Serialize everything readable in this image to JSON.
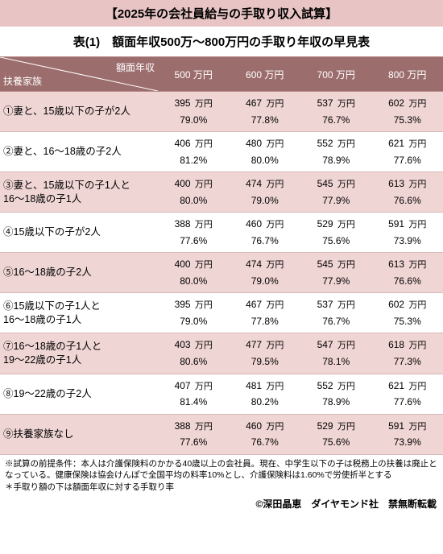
{
  "title": "【2025年の会社員給与の手取り収入試算】",
  "subtitle": "表(1)　額面年収500万～800万円の手取り年収の早見表",
  "header": {
    "diag_left": "扶養家族",
    "diag_right": "額面年収",
    "cols": [
      "500",
      "600",
      "700",
      "800"
    ],
    "col_unit": "万円"
  },
  "unit_man": "万円",
  "rows": [
    {
      "label": "①妻と、15歳以下の子が2人",
      "amounts": [
        "395",
        "467",
        "537",
        "602"
      ],
      "rates": [
        "79.0%",
        "77.8%",
        "76.7%",
        "75.3%"
      ]
    },
    {
      "label": "②妻と、16～18歳の子2人",
      "amounts": [
        "406",
        "480",
        "552",
        "621"
      ],
      "rates": [
        "81.2%",
        "80.0%",
        "78.9%",
        "77.6%"
      ]
    },
    {
      "label": "③妻と、15歳以下の子1人と\n16～18歳の子1人",
      "amounts": [
        "400",
        "474",
        "545",
        "613"
      ],
      "rates": [
        "80.0%",
        "79.0%",
        "77.9%",
        "76.6%"
      ]
    },
    {
      "label": "④15歳以下の子が2人",
      "amounts": [
        "388",
        "460",
        "529",
        "591"
      ],
      "rates": [
        "77.6%",
        "76.7%",
        "75.6%",
        "73.9%"
      ]
    },
    {
      "label": "⑤16～18歳の子2人",
      "amounts": [
        "400",
        "474",
        "545",
        "613"
      ],
      "rates": [
        "80.0%",
        "79.0%",
        "77.9%",
        "76.6%"
      ]
    },
    {
      "label": "⑥15歳以下の子1人と\n16～18歳の子1人",
      "amounts": [
        "395",
        "467",
        "537",
        "602"
      ],
      "rates": [
        "79.0%",
        "77.8%",
        "76.7%",
        "75.3%"
      ]
    },
    {
      "label": "⑦16～18歳の子1人と\n19～22歳の子1人",
      "amounts": [
        "403",
        "477",
        "547",
        "618"
      ],
      "rates": [
        "80.6%",
        "79.5%",
        "78.1%",
        "77.3%"
      ]
    },
    {
      "label": "⑧19～22歳の子2人",
      "amounts": [
        "407",
        "481",
        "552",
        "621"
      ],
      "rates": [
        "81.4%",
        "80.2%",
        "78.9%",
        "77.6%"
      ]
    },
    {
      "label": "⑨扶養家族なし",
      "amounts": [
        "388",
        "460",
        "529",
        "591"
      ],
      "rates": [
        "77.6%",
        "76.7%",
        "75.6%",
        "73.9%"
      ]
    }
  ],
  "notes": [
    "※試算の前提条件：本人は介護保険料のかかる40歳以上の会社員。現在、中学生以下の子は税務上の扶養は廃止となっている。健康保険は協会けんぽで全国平均の料率10%とし、介護保険料は1.60%で労使折半とする",
    "＊手取り額の下は額面年収に対する手取り率"
  ],
  "copyright": "©深田晶恵　ダイヤモンド社　禁無断転載",
  "colors": {
    "title_bg": "#e8c4c4",
    "header_bg": "#9c6d6d",
    "odd_row": "#efd5d4",
    "even_row": "#ffffff",
    "border": "#d9b9b9"
  }
}
